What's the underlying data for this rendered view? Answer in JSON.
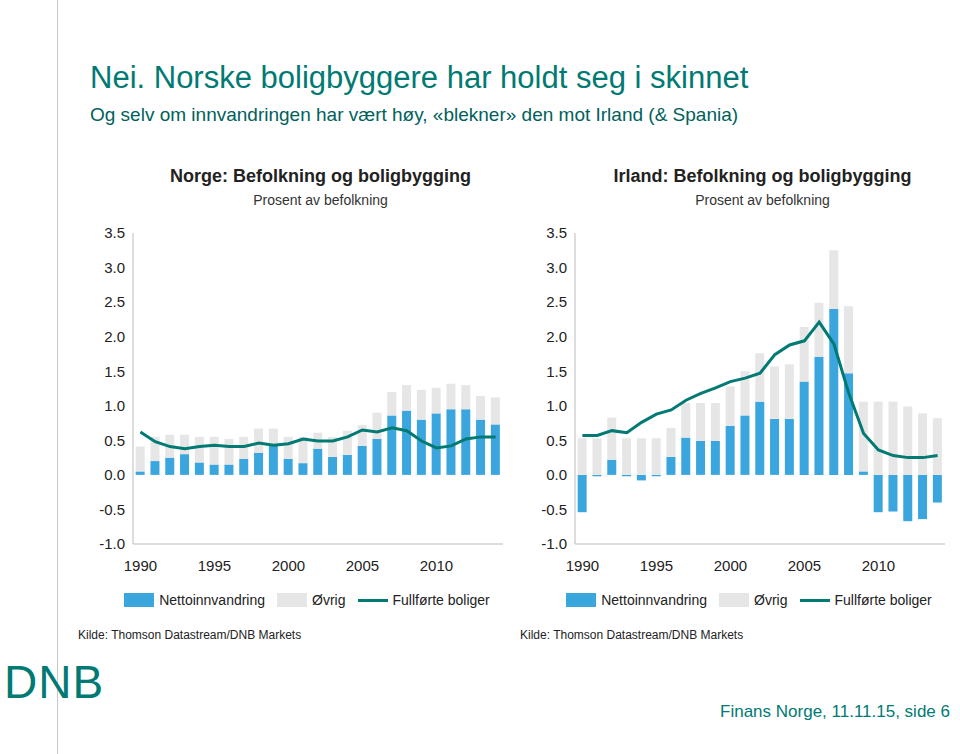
{
  "title": "Nei. Norske boligbyggere har holdt seg i skinnet",
  "subtitle": "Og selv om innvandringen har vært høy, «blekner» den mot Irland (& Spania)",
  "logo": "DNB",
  "footer": "Finans Norge, 11.11.15, side 6",
  "chart_data": [
    {
      "type": "bar",
      "title": "Norge: Befolkning og boligbygging",
      "subtitle": "Prosent av befolkning",
      "source": "Kilde: Thomson Datastream/DNB Markets",
      "categories": [
        "1990",
        null,
        null,
        null,
        null,
        "1995",
        null,
        null,
        null,
        null,
        "2000",
        null,
        null,
        null,
        null,
        "2005",
        null,
        null,
        null,
        null,
        "2010",
        null,
        null,
        null,
        null
      ],
      "series": [
        {
          "name": "Nettoinnvandring",
          "type": "bar",
          "color": "#3aa6dd",
          "values": [
            0.05,
            0.2,
            0.25,
            0.3,
            0.18,
            0.15,
            0.15,
            0.23,
            0.32,
            0.43,
            0.23,
            0.17,
            0.38,
            0.26,
            0.29,
            0.42,
            0.52,
            0.86,
            0.93,
            0.8,
            0.89,
            0.95,
            0.95,
            0.8,
            0.73
          ]
        },
        {
          "name": "Øvrig",
          "type": "bar",
          "color": "#e6e6e6",
          "values": [
            0.36,
            0.35,
            0.33,
            0.28,
            0.37,
            0.4,
            0.37,
            0.32,
            0.35,
            0.24,
            0.32,
            0.38,
            0.23,
            0.29,
            0.35,
            0.3,
            0.38,
            0.34,
            0.37,
            0.43,
            0.37,
            0.37,
            0.35,
            0.34,
            0.39
          ]
        },
        {
          "name": "Fullførte boliger",
          "type": "line",
          "color": "#007a73",
          "values": [
            0.62,
            0.48,
            0.41,
            0.38,
            0.41,
            0.43,
            0.41,
            0.41,
            0.46,
            0.43,
            0.45,
            0.52,
            0.49,
            0.49,
            0.55,
            0.65,
            0.62,
            0.68,
            0.64,
            0.49,
            0.39,
            0.42,
            0.52,
            0.55,
            0.55
          ]
        }
      ],
      "ylim": [
        -1,
        3.5
      ],
      "yticks": [
        {
          "value": -1,
          "label": "-1.0"
        },
        {
          "value": -0.5,
          "label": "-0.5"
        },
        {
          "value": 0,
          "label": "0.0"
        },
        {
          "value": 0.5,
          "label": "0.5"
        },
        {
          "value": 1,
          "label": "1.0"
        },
        {
          "value": 1.5,
          "label": "1.5"
        },
        {
          "value": 2,
          "label": "2.0"
        },
        {
          "value": 2.5,
          "label": "2.5"
        },
        {
          "value": 3,
          "label": "3.0"
        },
        {
          "value": 3.5,
          "label": "3.5"
        }
      ],
      "stacked": true,
      "grid": false
    },
    {
      "type": "bar",
      "title": "Irland: Befolkning og boligbygging",
      "subtitle": "Prosent av befolkning",
      "source": "Kilde: Thomson Datastream/DNB Markets",
      "categories": [
        "1990",
        null,
        null,
        null,
        null,
        "1995",
        null,
        null,
        null,
        null,
        "2000",
        null,
        null,
        null,
        null,
        "2005",
        null,
        null,
        null,
        null,
        "2010",
        null,
        null,
        null,
        null
      ],
      "series": [
        {
          "name": "Nettoinnvandring",
          "type": "bar",
          "color": "#3aa6dd",
          "values": [
            -0.54,
            -0.02,
            0.22,
            -0.02,
            -0.08,
            -0.02,
            0.26,
            0.54,
            0.49,
            0.49,
            0.71,
            0.86,
            1.06,
            0.81,
            0.81,
            1.35,
            1.71,
            2.4,
            1.47,
            0.05,
            -0.54,
            -0.53,
            -0.67,
            -0.64,
            -0.4
          ]
        },
        {
          "name": "Øvrig",
          "type": "bar",
          "color": "#e6e6e6",
          "values": [
            0.53,
            0.53,
            0.61,
            0.53,
            0.53,
            0.53,
            0.42,
            0.5,
            0.55,
            0.55,
            0.57,
            0.64,
            0.7,
            0.76,
            0.79,
            0.79,
            0.78,
            0.85,
            0.97,
            1.01,
            1.06,
            1.06,
            0.99,
            0.89,
            0.82
          ]
        },
        {
          "name": "Fullførte boliger",
          "type": "line",
          "color": "#007a73",
          "values": [
            0.57,
            0.57,
            0.64,
            0.61,
            0.76,
            0.88,
            0.94,
            1.08,
            1.18,
            1.26,
            1.35,
            1.4,
            1.47,
            1.74,
            1.88,
            1.94,
            2.21,
            1.89,
            1.18,
            0.6,
            0.36,
            0.28,
            0.25,
            0.25,
            0.28
          ]
        }
      ],
      "ylim": [
        -1,
        3.5
      ],
      "yticks": [
        {
          "value": -1,
          "label": "-1.0"
        },
        {
          "value": -0.5,
          "label": "-0.5"
        },
        {
          "value": 0,
          "label": "0.0"
        },
        {
          "value": 0.5,
          "label": "0.5"
        },
        {
          "value": 1,
          "label": "1.0"
        },
        {
          "value": 1.5,
          "label": "1.5"
        },
        {
          "value": 2,
          "label": "2.0"
        },
        {
          "value": 2.5,
          "label": "2.5"
        },
        {
          "value": 3,
          "label": "3.0"
        },
        {
          "value": 3.5,
          "label": "3.5"
        }
      ],
      "stacked": true,
      "grid": false
    }
  ]
}
